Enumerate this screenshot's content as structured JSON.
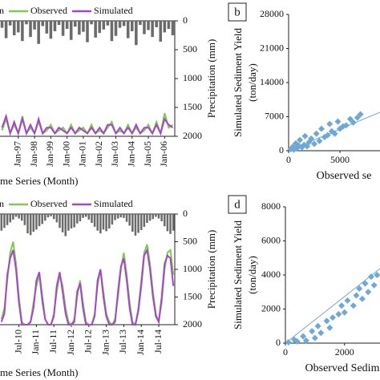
{
  "chart_data": [
    {
      "type": "line",
      "xlabel": "me Series (Month)",
      "ylabel": "Precipitation (mm)",
      "categories": [
        null,
        null,
        null,
        null,
        "Jan-97",
        null,
        null,
        null,
        "Jan-98",
        null,
        null,
        null,
        "Jan-99",
        null,
        null,
        null,
        "Jan-00",
        null,
        null,
        null,
        "Jan-01",
        null,
        null,
        null,
        "Jan-02",
        null,
        null,
        null,
        "Jan-03",
        null,
        null,
        null,
        "Jan-04",
        null,
        null,
        null,
        "Jan-05",
        null,
        null,
        null,
        "Jan-06",
        null,
        null
      ],
      "ylim": [
        2000,
        0
      ],
      "yticks": [
        0,
        500,
        1000,
        1500,
        2000
      ],
      "series": [
        {
          "name": "n",
          "mark": "bar",
          "color": "#6b6b6b",
          "values": [
            120,
            300,
            80,
            250,
            200,
            350,
            60,
            280,
            150,
            400,
            90,
            220,
            310,
            180,
            70,
            260,
            140,
            330,
            100,
            240,
            190,
            370,
            60,
            290,
            210,
            150,
            80,
            350,
            260,
            120,
            90,
            300,
            180,
            420,
            70,
            230,
            160,
            280,
            110,
            360,
            200,
            140,
            250
          ]
        },
        {
          "name": "Observed",
          "mark": "line",
          "color": "#80c94f",
          "values": [
            1900,
            1700,
            1950,
            1800,
            1950,
            1650,
            1950,
            1850,
            1950,
            1750,
            1950,
            1900,
            1800,
            1950,
            1900,
            1850,
            1950,
            1800,
            1950,
            1900,
            1850,
            1950,
            1800,
            1950,
            1900,
            1950,
            1850,
            1750,
            1950,
            1900,
            1950,
            1800,
            1950,
            1850,
            1950,
            1900,
            1800,
            1950,
            1750,
            1950,
            1600,
            1850,
            1800
          ]
        },
        {
          "name": "Simulated",
          "mark": "line",
          "color": "#a546c9",
          "values": [
            1850,
            1650,
            1950,
            1750,
            1950,
            1700,
            1950,
            1800,
            1950,
            1700,
            1950,
            1850,
            1850,
            1950,
            1850,
            1900,
            1950,
            1850,
            1950,
            1850,
            1900,
            1950,
            1850,
            1950,
            1850,
            1950,
            1800,
            1800,
            1950,
            1850,
            1950,
            1850,
            1950,
            1800,
            1950,
            1850,
            1850,
            1950,
            1800,
            1950,
            1700,
            1800,
            1850
          ]
        }
      ]
    },
    {
      "type": "scatter",
      "panel_label": "b",
      "xlabel": "Observed se",
      "ylabel": [
        "Simulated Sediment Yield",
        "(ton/day)"
      ],
      "xlim": [
        0,
        8900
      ],
      "xticks": [
        0,
        5000
      ],
      "ylim": [
        0,
        28000
      ],
      "yticks": [
        0,
        7000,
        14000,
        21000,
        28000
      ],
      "color": "#6fa8d6",
      "x": [
        200,
        400,
        500,
        700,
        800,
        1000,
        1100,
        1300,
        1500,
        1600,
        1800,
        2000,
        2200,
        2500,
        2700,
        3000,
        3200,
        3500,
        3800,
        4000,
        4200,
        4500,
        4800,
        5000,
        5300,
        5600,
        6000,
        6300,
        6700,
        7000
      ],
      "y": [
        300,
        800,
        200,
        1500,
        500,
        1000,
        2200,
        700,
        1200,
        3000,
        900,
        1800,
        2500,
        1400,
        3500,
        2000,
        4500,
        2800,
        3200,
        5500,
        4000,
        3500,
        6000,
        4500,
        5000,
        5200,
        6500,
        5800,
        6800,
        7500
      ]
    },
    {
      "type": "line",
      "xlabel": "me Series (Month)",
      "ylabel": "Precipitation (mm)",
      "categories": [
        null,
        null,
        null,
        null,
        null,
        null,
        "Jul-10",
        null,
        null,
        null,
        null,
        null,
        "Jan-11",
        null,
        null,
        null,
        null,
        null,
        "Jul-11",
        null,
        null,
        null,
        null,
        null,
        "Jan-12",
        null,
        null,
        null,
        null,
        null,
        "Jul-12",
        null,
        null,
        null,
        null,
        null,
        "Jan-13",
        null,
        null,
        null,
        null,
        null,
        "Jul-13",
        null,
        null,
        null,
        null,
        null,
        "Jan-14",
        null,
        null,
        null,
        null,
        null,
        "Jul-14",
        null,
        null,
        null,
        null,
        null
      ],
      "ylim": [
        2000,
        0
      ],
      "yticks": [
        0,
        500,
        1000,
        1500,
        2000
      ],
      "series": [
        {
          "name": "n",
          "mark": "bar",
          "color": "#6b6b6b",
          "values": [
            300,
            250,
            200,
            150,
            100,
            50,
            80,
            120,
            200,
            350,
            380,
            320,
            280,
            220,
            180,
            120,
            60,
            40,
            90,
            150,
            250,
            330,
            400,
            300,
            260,
            240,
            170,
            130,
            70,
            50,
            100,
            160,
            230,
            300,
            350,
            280,
            310,
            260,
            190,
            110,
            80,
            60,
            70,
            140,
            210,
            320,
            390,
            340,
            290,
            230,
            160,
            120,
            90,
            50,
            80,
            130,
            220,
            310,
            360,
            300
          ]
        },
        {
          "name": "Observed",
          "mark": "line",
          "color": "#80c94f",
          "values": [
            1900,
            1700,
            1200,
            700,
            500,
            900,
            1500,
            1950,
            2000,
            2000,
            1950,
            1600,
            1300,
            1100,
            1600,
            1900,
            2000,
            2000,
            1800,
            1400,
            1100,
            1300,
            1700,
            1950,
            2000,
            1900,
            1500,
            1200,
            1600,
            1950,
            2000,
            2000,
            1800,
            1300,
            1000,
            1400,
            1800,
            1950,
            2000,
            1900,
            1500,
            1000,
            700,
            1100,
            1600,
            1950,
            2000,
            1700,
            1200,
            700,
            550,
            900,
            1400,
            1800,
            1950,
            1600,
            1000,
            700,
            650,
            1100
          ]
        },
        {
          "name": "Simulated",
          "mark": "line",
          "color": "#a546c9",
          "values": [
            1950,
            1800,
            1100,
            800,
            650,
            1000,
            1600,
            2000,
            2000,
            2000,
            1950,
            1700,
            1200,
            1050,
            1500,
            1900,
            2000,
            2000,
            1850,
            1300,
            1050,
            1400,
            1800,
            2000,
            2000,
            1950,
            1400,
            1250,
            1700,
            2000,
            2000,
            2000,
            1850,
            1200,
            1000,
            1500,
            1850,
            2000,
            2000,
            1950,
            1400,
            950,
            800,
            1200,
            1700,
            2000,
            2000,
            1750,
            1300,
            750,
            650,
            1000,
            1500,
            1850,
            1950,
            1500,
            900,
            750,
            800,
            1300
          ]
        }
      ]
    },
    {
      "type": "scatter",
      "panel_label": "d",
      "xlabel": "Observed Sedim",
      "ylabel": [
        "Simulated Sediment Yield",
        "(ton/day)"
      ],
      "xlim": [
        0,
        3200
      ],
      "xticks": [
        0,
        2000
      ],
      "ylim": [
        0,
        8000
      ],
      "yticks": [
        0,
        2000,
        4000,
        6000,
        8000
      ],
      "color": "#6fa8d6",
      "x": [
        100,
        300,
        400,
        600,
        700,
        900,
        1000,
        1100,
        1200,
        1400,
        1500,
        1600,
        1800,
        1900,
        2000,
        2100,
        2300,
        2400,
        2500,
        2600,
        2700,
        2800,
        2900,
        3000,
        3100
      ],
      "y": [
        50,
        200,
        100,
        400,
        150,
        700,
        300,
        1000,
        600,
        1300,
        900,
        1500,
        1700,
        2200,
        1800,
        2500,
        2200,
        2800,
        3200,
        2600,
        3500,
        3000,
        3900,
        3400,
        4000
      ]
    }
  ]
}
